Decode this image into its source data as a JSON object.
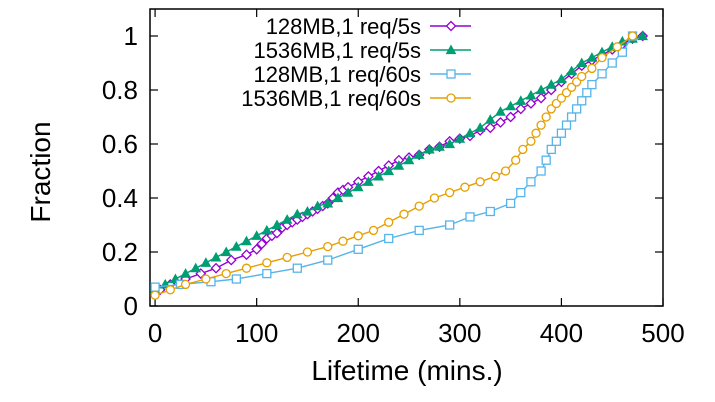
{
  "chart_data": {
    "type": "line",
    "xlabel": "Lifetime (mins.)",
    "ylabel": "Fraction",
    "xlim": [
      -5,
      500
    ],
    "ylim": [
      0,
      1.1
    ],
    "xticks": [
      0,
      100,
      200,
      300,
      400,
      500
    ],
    "yticks": [
      0,
      0.2,
      0.4,
      0.6,
      0.8,
      1
    ],
    "ytick_labels": [
      "0",
      "0.2",
      "0.4",
      "0.6",
      "0.8",
      "1"
    ],
    "legend_position": "top-center",
    "grid": false,
    "series": [
      {
        "name": "128MB,1 req/5s",
        "color": "#9400D3",
        "marker": "diamond-open",
        "x": [
          5,
          15,
          30,
          45,
          60,
          75,
          90,
          100,
          105,
          110,
          115,
          120,
          125,
          130,
          135,
          140,
          145,
          150,
          155,
          160,
          165,
          170,
          175,
          180,
          185,
          190,
          200,
          210,
          220,
          230,
          240,
          250,
          260,
          270,
          280,
          290,
          300,
          310,
          320,
          330,
          340,
          350,
          360,
          370,
          380,
          390,
          400,
          410,
          420,
          430,
          440,
          450,
          460,
          470,
          480
        ],
        "y": [
          0.06,
          0.08,
          0.1,
          0.12,
          0.14,
          0.17,
          0.19,
          0.21,
          0.23,
          0.25,
          0.26,
          0.27,
          0.29,
          0.3,
          0.31,
          0.32,
          0.33,
          0.34,
          0.35,
          0.36,
          0.37,
          0.38,
          0.4,
          0.42,
          0.43,
          0.44,
          0.46,
          0.48,
          0.5,
          0.52,
          0.54,
          0.55,
          0.56,
          0.58,
          0.59,
          0.61,
          0.62,
          0.63,
          0.65,
          0.66,
          0.68,
          0.7,
          0.73,
          0.75,
          0.77,
          0.8,
          0.83,
          0.86,
          0.89,
          0.91,
          0.93,
          0.95,
          0.97,
          0.99,
          1.0
        ]
      },
      {
        "name": "1536MB,1 req/5s",
        "color": "#009E73",
        "marker": "triangle-filled",
        "x": [
          0,
          10,
          20,
          30,
          40,
          50,
          60,
          70,
          80,
          90,
          100,
          110,
          120,
          130,
          140,
          150,
          160,
          170,
          180,
          190,
          200,
          210,
          220,
          230,
          240,
          250,
          260,
          270,
          280,
          290,
          300,
          310,
          320,
          330,
          340,
          350,
          360,
          370,
          380,
          390,
          400,
          410,
          420,
          430,
          440,
          450,
          460,
          470,
          480
        ],
        "y": [
          0.06,
          0.08,
          0.1,
          0.12,
          0.14,
          0.16,
          0.18,
          0.2,
          0.22,
          0.24,
          0.26,
          0.28,
          0.3,
          0.32,
          0.34,
          0.35,
          0.37,
          0.38,
          0.4,
          0.42,
          0.44,
          0.46,
          0.48,
          0.5,
          0.52,
          0.54,
          0.56,
          0.58,
          0.59,
          0.6,
          0.62,
          0.64,
          0.66,
          0.69,
          0.72,
          0.74,
          0.76,
          0.78,
          0.8,
          0.82,
          0.84,
          0.87,
          0.9,
          0.92,
          0.94,
          0.96,
          0.98,
          0.99,
          1.0
        ]
      },
      {
        "name": "128MB,1 req/60s",
        "color": "#56B4E9",
        "marker": "square-open",
        "x": [
          0,
          25,
          55,
          80,
          110,
          140,
          170,
          200,
          230,
          260,
          290,
          310,
          330,
          350,
          360,
          370,
          380,
          385,
          390,
          395,
          400,
          405,
          410,
          415,
          420,
          425,
          430,
          440,
          450,
          460,
          470
        ],
        "y": [
          0.07,
          0.08,
          0.09,
          0.1,
          0.12,
          0.14,
          0.17,
          0.21,
          0.25,
          0.28,
          0.3,
          0.33,
          0.35,
          0.38,
          0.42,
          0.46,
          0.5,
          0.54,
          0.58,
          0.61,
          0.64,
          0.67,
          0.7,
          0.73,
          0.76,
          0.79,
          0.82,
          0.86,
          0.9,
          0.94,
          1.0
        ]
      },
      {
        "name": "1536MB,1 req/60s",
        "color": "#E69F00",
        "marker": "circle-open",
        "x": [
          0,
          15,
          30,
          50,
          70,
          90,
          110,
          130,
          150,
          170,
          185,
          200,
          215,
          230,
          245,
          260,
          275,
          290,
          305,
          320,
          335,
          345,
          355,
          362,
          370,
          375,
          380,
          385,
          390,
          395,
          400,
          405,
          410,
          415,
          420,
          430,
          440,
          455,
          470
        ],
        "y": [
          0.04,
          0.06,
          0.08,
          0.1,
          0.12,
          0.14,
          0.16,
          0.18,
          0.2,
          0.22,
          0.24,
          0.26,
          0.28,
          0.31,
          0.34,
          0.37,
          0.4,
          0.42,
          0.44,
          0.46,
          0.48,
          0.5,
          0.54,
          0.58,
          0.61,
          0.64,
          0.67,
          0.7,
          0.73,
          0.75,
          0.77,
          0.79,
          0.81,
          0.83,
          0.85,
          0.88,
          0.92,
          0.96,
          1.0
        ]
      }
    ]
  }
}
